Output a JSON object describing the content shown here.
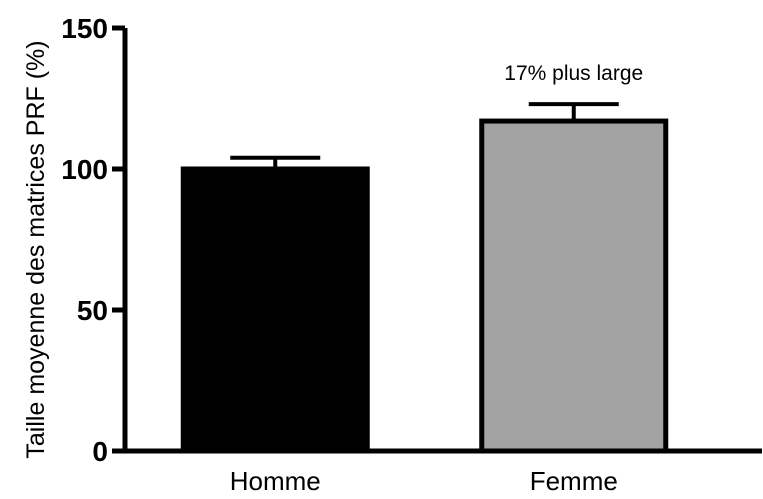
{
  "chart_data": {
    "type": "bar",
    "categories": [
      "Homme",
      "Femme"
    ],
    "values": [
      100,
      117
    ],
    "error": [
      4,
      6
    ],
    "colors": [
      "#000000",
      "#a3a3a3"
    ],
    "ylabel": "Taille moyenne des matrices PRF (%)",
    "xlabel": "",
    "ylim": [
      0,
      150
    ],
    "yticks": [
      0,
      50,
      100,
      150
    ],
    "ytick_labels": [
      "0",
      "50",
      "100",
      "150"
    ],
    "annotation": {
      "text": "17% plus large",
      "category": "Femme"
    },
    "grid": false
  }
}
